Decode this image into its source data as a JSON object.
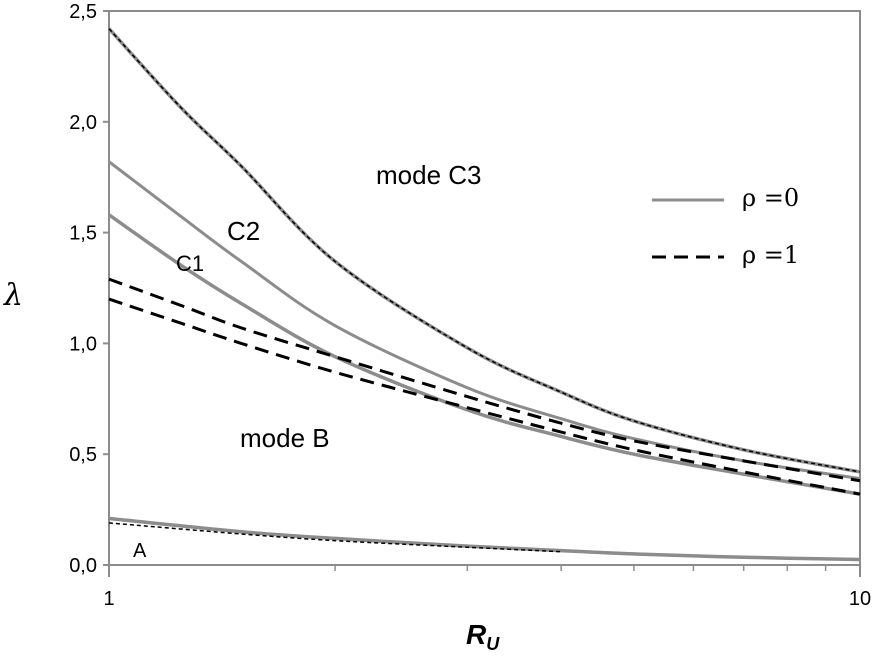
{
  "chart_data": {
    "type": "line",
    "xscale": "log",
    "xlim": [
      1,
      10
    ],
    "ylim": [
      0,
      2.5
    ],
    "xlabel": "R",
    "xlabel_sub": "U",
    "ylabel": "λ",
    "xticks": [
      {
        "value": 1,
        "label": "1"
      },
      {
        "value": 10,
        "label": "10"
      }
    ],
    "yticks": [
      {
        "value": 0,
        "label": "0,0"
      },
      {
        "value": 0.5,
        "label": "0,5"
      },
      {
        "value": 1,
        "label": "1,0"
      },
      {
        "value": 1.5,
        "label": "1,5"
      },
      {
        "value": 2,
        "label": "2,0"
      },
      {
        "value": 2.5,
        "label": "2,5"
      }
    ],
    "grid": false,
    "legend_position": "top-right",
    "legend": [
      {
        "label": "ρ =0",
        "style": "solid",
        "color": "#8c8c8c"
      },
      {
        "label": "ρ =1",
        "style": "dashed",
        "color": "#000000"
      }
    ],
    "annotations": [
      {
        "text": "mode C3",
        "x": 1.95,
        "y": 1.76
      },
      {
        "text": "C2",
        "x": 1.6,
        "y": 1.5
      },
      {
        "text": "C1",
        "x": 1.3,
        "y": 1.36
      },
      {
        "text": "mode B",
        "x": 1.7,
        "y": 0.52
      },
      {
        "text": "A",
        "x": 1.12,
        "y": 0.04
      }
    ],
    "series": [
      {
        "key": "c3-rho0",
        "rho": "0",
        "x": [
          1,
          1.25,
          1.5,
          2,
          3,
          4,
          5,
          7,
          10
        ],
        "y": [
          2.42,
          2.06,
          1.8,
          1.37,
          0.98,
          0.78,
          0.65,
          0.52,
          0.42
        ]
      },
      {
        "key": "c3-rho1",
        "rho": "1",
        "x": [
          1,
          1.25,
          1.5,
          2,
          3,
          4,
          5,
          7,
          10
        ],
        "y": [
          2.42,
          2.06,
          1.8,
          1.37,
          0.98,
          0.78,
          0.65,
          0.52,
          0.42
        ]
      },
      {
        "key": "c2-rho0",
        "rho": "0",
        "x": [
          1,
          1.25,
          1.5,
          2,
          3,
          4,
          5,
          7,
          10
        ],
        "y": [
          1.82,
          1.57,
          1.37,
          1.08,
          0.8,
          0.66,
          0.57,
          0.47,
          0.39
        ]
      },
      {
        "key": "c1-rho0",
        "rho": "0",
        "x": [
          1,
          1.25,
          1.5,
          2,
          3,
          4,
          5,
          7,
          10
        ],
        "y": [
          1.58,
          1.35,
          1.18,
          0.94,
          0.7,
          0.58,
          0.5,
          0.41,
          0.32
        ]
      },
      {
        "key": "c2-rho1",
        "rho": "1",
        "x": [
          1,
          1.25,
          1.5,
          2,
          3,
          4,
          5,
          7,
          10
        ],
        "y": [
          1.29,
          1.17,
          1.07,
          0.94,
          0.76,
          0.64,
          0.56,
          0.47,
          0.38
        ]
      },
      {
        "key": "c1-rho1",
        "rho": "1",
        "x": [
          1,
          1.25,
          1.5,
          2,
          3,
          4,
          5,
          7,
          10
        ],
        "y": [
          1.2,
          1.09,
          1.0,
          0.87,
          0.71,
          0.6,
          0.52,
          0.42,
          0.32
        ]
      },
      {
        "key": "a-rho0",
        "rho": "0",
        "x": [
          1,
          1.5,
          2,
          3,
          4,
          5,
          7,
          10
        ],
        "y": [
          0.21,
          0.15,
          0.12,
          0.085,
          0.065,
          0.05,
          0.035,
          0.025
        ]
      },
      {
        "key": "a-rho1",
        "rho": "1",
        "x": [
          1,
          1.5,
          2,
          3,
          4
        ],
        "y": [
          0.19,
          0.14,
          0.11,
          0.08,
          0.06
        ]
      }
    ]
  }
}
